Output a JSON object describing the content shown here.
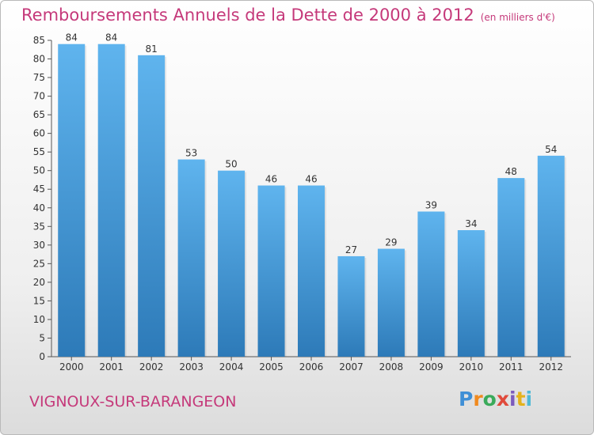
{
  "title": "Remboursements Annuels de la Dette de 2000 à 2012",
  "unit_note": "(en milliers d'€)",
  "city": "VIGNOUX-SUR-BARANGEON",
  "logo": {
    "letters": [
      "P",
      "r",
      "o",
      "x",
      "i",
      "t",
      "i"
    ],
    "colors": [
      "#3f8fd6",
      "#f08a1f",
      "#3aaa5a",
      "#e04a3b",
      "#7c5bbd",
      "#e4b21c",
      "#4fb9d6"
    ]
  },
  "colors": {
    "title": "#c5397a",
    "bar_top": "#5fb4ee",
    "bar_bottom": "#2d7ab8"
  },
  "chart_data": {
    "type": "bar",
    "categories": [
      "2000",
      "2001",
      "2002",
      "2003",
      "2004",
      "2005",
      "2006",
      "2007",
      "2008",
      "2009",
      "2010",
      "2011",
      "2012"
    ],
    "values": [
      84,
      84,
      81,
      53,
      50,
      46,
      46,
      27,
      29,
      39,
      34,
      48,
      54
    ],
    "ylim": [
      0,
      85
    ],
    "yticks": [
      0,
      5,
      10,
      15,
      20,
      25,
      30,
      35,
      40,
      45,
      50,
      55,
      60,
      65,
      70,
      75,
      80,
      85
    ],
    "data_labels": true,
    "grid": false
  }
}
